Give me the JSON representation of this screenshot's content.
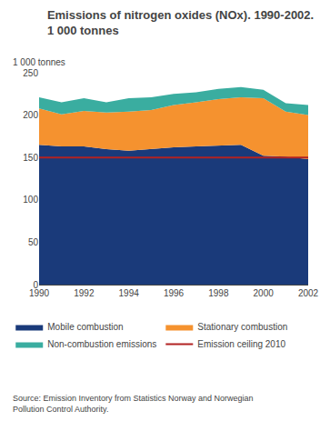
{
  "chart_data": {
    "type": "area",
    "stacked": true,
    "title": "Emissions of nitrogen oxides (NOx). 1990-2002.",
    "subtitle": "1 000 tonnes",
    "ylabel": "1 000 tonnes",
    "x": [
      1990,
      1991,
      1992,
      1993,
      1994,
      1995,
      1996,
      1997,
      1998,
      1999,
      2000,
      2001,
      2002
    ],
    "series": [
      {
        "name": "Mobile combustion",
        "color": "#1a3a7a",
        "values": [
          165,
          163,
          163,
          160,
          158,
          160,
          162,
          163,
          164,
          165,
          152,
          151,
          148
        ]
      },
      {
        "name": "Stationary combustion",
        "color": "#f5922f",
        "values": [
          43,
          38,
          42,
          43,
          46,
          46,
          50,
          52,
          55,
          56,
          68,
          53,
          52
        ]
      },
      {
        "name": "Non-combustion emissions",
        "color": "#3aada0",
        "values": [
          13,
          14,
          15,
          12,
          16,
          15,
          13,
          12,
          12,
          12,
          10,
          10,
          12
        ]
      }
    ],
    "reference_lines": [
      {
        "name": "Emission ceiling 2010",
        "value": 150,
        "color": "#b22222"
      }
    ],
    "xlim": [
      1990,
      2002
    ],
    "xticks": [
      1990,
      1992,
      1994,
      1996,
      1998,
      2000,
      2002
    ],
    "ylim": [
      0,
      250
    ],
    "yticks": [
      0,
      50,
      100,
      150,
      200,
      250
    ],
    "grid": true,
    "legend": "bottom",
    "source": "Source: Emission Inventory from Statistics Norway and Norwegian\nPollution Control Authority."
  }
}
